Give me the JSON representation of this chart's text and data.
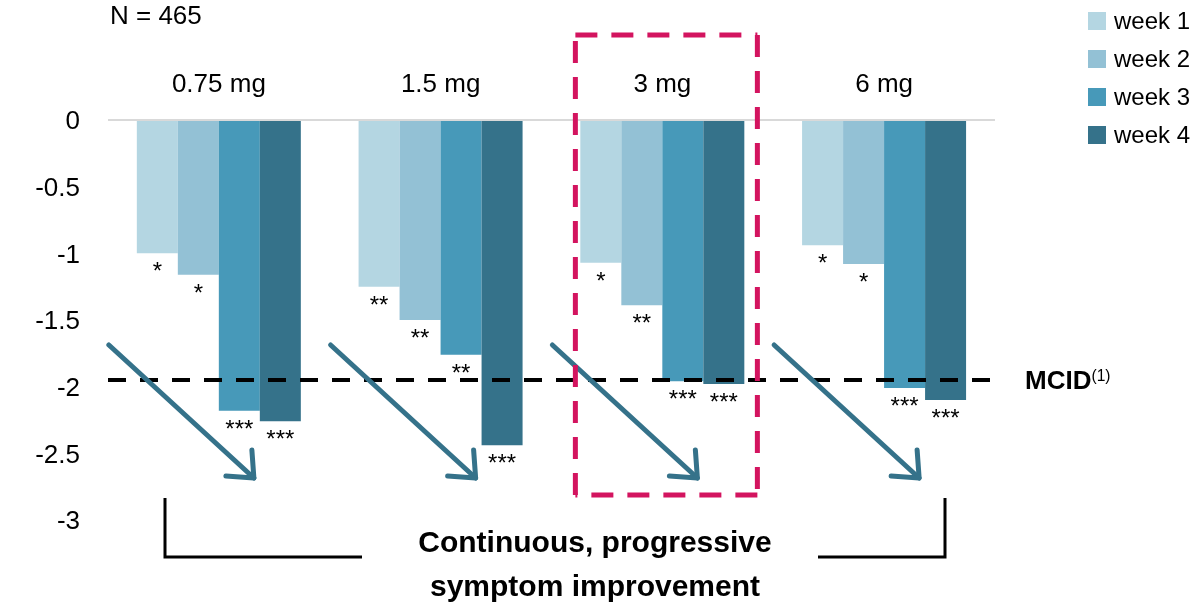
{
  "chart_data": {
    "type": "bar",
    "title": "N = 465",
    "categories": [
      "0.75 mg",
      "1.5 mg",
      "3 mg",
      "6 mg"
    ],
    "series": [
      {
        "name": "week 1",
        "color": "#b4d6e2",
        "values": [
          -1.0,
          -1.25,
          -1.07,
          -0.94
        ],
        "value_labels": [
          "*",
          "**",
          "*",
          "*"
        ]
      },
      {
        "name": "week 2",
        "color": "#93c1d5",
        "values": [
          -1.16,
          -1.5,
          -1.39,
          -1.08
        ],
        "value_labels": [
          "*",
          "**",
          "**",
          "*"
        ]
      },
      {
        "name": "week 3",
        "color": "#4799b9",
        "values": [
          -2.18,
          -1.76,
          -1.96,
          -2.01
        ],
        "value_labels": [
          "***",
          "**",
          "***",
          "***"
        ]
      },
      {
        "name": "week 4",
        "color": "#35728a",
        "values": [
          -2.26,
          -2.44,
          -1.98,
          -2.1
        ],
        "value_labels": [
          "***",
          "***",
          "***",
          "***"
        ]
      }
    ],
    "ylim": [
      -3,
      0
    ],
    "yticks": [
      0,
      -0.5,
      -1,
      -1.5,
      -2,
      -2.5,
      -3
    ],
    "ref_lines": [
      {
        "axis": "y",
        "value": -1.95,
        "label": "MCID$^{(1)}$",
        "color": "#000000",
        "line_style": "dashed"
      }
    ],
    "annotations": [
      "Continuous, progressive symptom improvement"
    ],
    "legend": "top right",
    "grid": false
  }
}
